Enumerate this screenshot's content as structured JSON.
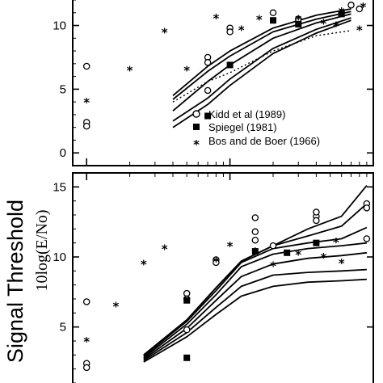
{
  "figure": {
    "ylabel_main": "Signal Threshold",
    "ylabel_sub": "10log(E/No)"
  },
  "legend": [
    {
      "marker": "circle",
      "label": "Kidd et al (1989)"
    },
    {
      "marker": "square",
      "label": "Spiegel (1981)"
    },
    {
      "marker": "star",
      "label": "Bos and de Boer (1966)"
    }
  ],
  "chart_data": [
    {
      "type": "line",
      "panel": "top",
      "ylim": [
        -1,
        12
      ],
      "xlim": [
        0.8,
        100
      ],
      "x_scale": "log",
      "yticks": [
        0,
        5,
        10
      ],
      "grid": false,
      "legend_position": "lower-right",
      "series": [
        {
          "style": "solid",
          "points": [
            [
              4,
              4.5
            ],
            [
              7,
              6.8
            ],
            [
              10,
              8
            ],
            [
              20,
              9.8
            ],
            [
              40,
              10.8
            ],
            [
              70,
              11.3
            ]
          ]
        },
        {
          "style": "solid",
          "points": [
            [
              4,
              4.2
            ],
            [
              7,
              6.4
            ],
            [
              10,
              7.6
            ],
            [
              20,
              9.5
            ],
            [
              40,
              10.5
            ],
            [
              70,
              11.1
            ]
          ]
        },
        {
          "style": "solid",
          "points": [
            [
              4,
              3.3
            ],
            [
              7,
              5.6
            ],
            [
              10,
              6.9
            ],
            [
              20,
              9.0
            ],
            [
              40,
              10.2
            ],
            [
              70,
              10.9
            ]
          ]
        },
        {
          "style": "solid",
          "points": [
            [
              4,
              2.5
            ],
            [
              7,
              4.3
            ],
            [
              10,
              5.8
            ],
            [
              20,
              8.2
            ],
            [
              40,
              9.7
            ],
            [
              70,
              10.6
            ]
          ]
        },
        {
          "style": "solid",
          "points": [
            [
              4,
              2.0
            ],
            [
              7,
              3.8
            ],
            [
              10,
              5.3
            ],
            [
              20,
              7.8
            ],
            [
              40,
              9.4
            ],
            [
              70,
              10.4
            ]
          ]
        },
        {
          "style": "dotted",
          "points": [
            [
              4,
              4.0
            ],
            [
              7,
              5.6
            ],
            [
              10,
              6.3
            ],
            [
              20,
              8.0
            ],
            [
              40,
              9.2
            ],
            [
              70,
              9.6
            ]
          ]
        }
      ],
      "markers": {
        "circle": [
          [
            1,
            6.8
          ],
          [
            1,
            2.4
          ],
          [
            1,
            2.1
          ],
          [
            7,
            7.5
          ],
          [
            7,
            4.9
          ],
          [
            7,
            7.1
          ],
          [
            10,
            9.8
          ],
          [
            10,
            9.5
          ],
          [
            20,
            11
          ],
          [
            30,
            10.5
          ],
          [
            60,
            11
          ],
          [
            70,
            11.6
          ],
          [
            80,
            11.3
          ]
        ],
        "square": [
          [
            7,
            2.9
          ],
          [
            10,
            6.9
          ],
          [
            20,
            10.4
          ],
          [
            30,
            10.1
          ],
          [
            60,
            10.9
          ]
        ],
        "star": [
          [
            1,
            4
          ],
          [
            2,
            6.5
          ],
          [
            3.5,
            9.5
          ],
          [
            5,
            6.5
          ],
          [
            8,
            10.6
          ],
          [
            12,
            9.7
          ],
          [
            16,
            10.5
          ],
          [
            30,
            10.5
          ],
          [
            45,
            10.2
          ],
          [
            55,
            10
          ],
          [
            60,
            11.1
          ],
          [
            80,
            9.7
          ],
          [
            85,
            11.5
          ]
        ]
      }
    },
    {
      "type": "line",
      "panel": "bottom",
      "ylim": [
        1,
        16
      ],
      "xlim": [
        0.8,
        100
      ],
      "x_scale": "log",
      "yticks": [
        5,
        10,
        15
      ],
      "grid": false,
      "series": [
        {
          "style": "solid",
          "points": [
            [
              2.5,
              3.0
            ],
            [
              5,
              5.5
            ],
            [
              8,
              7.8
            ],
            [
              12,
              9.7
            ],
            [
              20,
              10.8
            ],
            [
              35,
              12.0
            ],
            [
              60,
              12.9
            ],
            [
              90,
              15.1
            ]
          ]
        },
        {
          "style": "solid",
          "points": [
            [
              2.5,
              3.0
            ],
            [
              5,
              5.5
            ],
            [
              8,
              7.8
            ],
            [
              12,
              9.7
            ],
            [
              20,
              10.8
            ],
            [
              35,
              11.5
            ],
            [
              60,
              12.2
            ],
            [
              90,
              13.8
            ]
          ]
        },
        {
          "style": "solid",
          "points": [
            [
              2.5,
              2.9
            ],
            [
              5,
              5.4
            ],
            [
              8,
              7.6
            ],
            [
              12,
              9.6
            ],
            [
              20,
              10.6
            ],
            [
              35,
              11.0
            ],
            [
              60,
              11.3
            ],
            [
              90,
              12.1
            ]
          ]
        },
        {
          "style": "solid",
          "points": [
            [
              2.5,
              2.8
            ],
            [
              5,
              5.2
            ],
            [
              8,
              7.3
            ],
            [
              12,
              9.3
            ],
            [
              20,
              10.2
            ],
            [
              35,
              10.6
            ],
            [
              60,
              10.8
            ],
            [
              90,
              11.0
            ]
          ]
        },
        {
          "style": "solid",
          "points": [
            [
              2.5,
              2.7
            ],
            [
              5,
              4.9
            ],
            [
              8,
              6.9
            ],
            [
              12,
              8.6
            ],
            [
              20,
              9.5
            ],
            [
              35,
              9.9
            ],
            [
              60,
              10.1
            ],
            [
              90,
              10.3
            ]
          ]
        },
        {
          "style": "solid",
          "points": [
            [
              2.5,
              2.6
            ],
            [
              5,
              4.6
            ],
            [
              8,
              6.4
            ],
            [
              12,
              7.9
            ],
            [
              20,
              8.7
            ],
            [
              35,
              8.9
            ],
            [
              60,
              9.0
            ],
            [
              90,
              9.1
            ]
          ]
        },
        {
          "style": "solid",
          "points": [
            [
              2.5,
              2.5
            ],
            [
              5,
              4.3
            ],
            [
              8,
              5.9
            ],
            [
              12,
              7.2
            ],
            [
              20,
              7.9
            ],
            [
              35,
              8.2
            ],
            [
              60,
              8.3
            ],
            [
              90,
              8.4
            ]
          ]
        }
      ],
      "markers": {
        "circle": [
          [
            1,
            6.8
          ],
          [
            1,
            2.4
          ],
          [
            1,
            2.1
          ],
          [
            5,
            7.4
          ],
          [
            5,
            4.8
          ],
          [
            5,
            7.0
          ],
          [
            8,
            9.8
          ],
          [
            8,
            9.6
          ],
          [
            15,
            12.8
          ],
          [
            15,
            11.2
          ],
          [
            15,
            11.8
          ],
          [
            20,
            10.8
          ],
          [
            40,
            12.9
          ],
          [
            40,
            13.2
          ],
          [
            40,
            12.6
          ],
          [
            90,
            13.8
          ],
          [
            90,
            13.5
          ],
          [
            90,
            11.3
          ]
        ],
        "square": [
          [
            5,
            2.8
          ],
          [
            5,
            6.9
          ],
          [
            15,
            10.4
          ],
          [
            25,
            10.3
          ],
          [
            40,
            11.0
          ]
        ],
        "star": [
          [
            1,
            4
          ],
          [
            1.6,
            6.5
          ],
          [
            2.5,
            9.5
          ],
          [
            3.5,
            10.6
          ],
          [
            8,
            9.7
          ],
          [
            10,
            10.8
          ],
          [
            15,
            10.4
          ],
          [
            20,
            9.4
          ],
          [
            30,
            10.2
          ],
          [
            45,
            10.0
          ],
          [
            55,
            11.1
          ],
          [
            60,
            9.6
          ]
        ]
      }
    }
  ]
}
